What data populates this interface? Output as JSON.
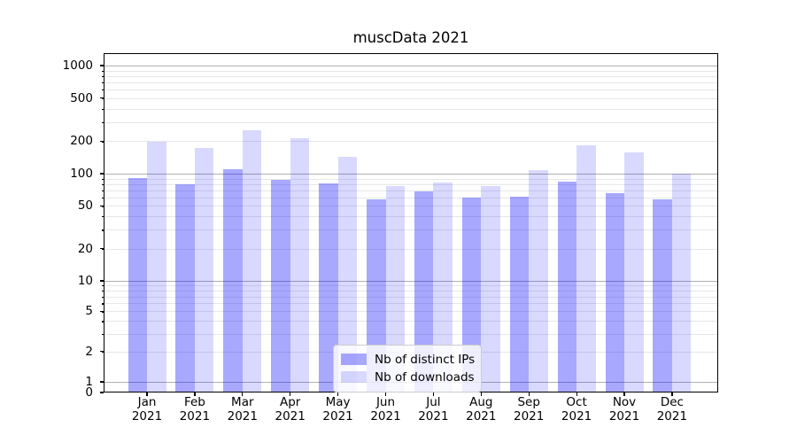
{
  "title": "muscData 2021",
  "colors": {
    "bar_ips_fill": "rgba(0,0,255,0.34)",
    "bar_downloads_fill": "rgba(0,0,255,0.15)",
    "bar_ips_hex": "#A8A8F8",
    "bar_downloads_hex": "#D8D8FA",
    "grid_major": "#b0b0b0",
    "grid_minor": "#e7e7e7",
    "axis": "#000000",
    "background": "#ffffff"
  },
  "legend": {
    "items": [
      {
        "label": "Nb of distinct IPs",
        "swatch": "ips"
      },
      {
        "label": "Nb of downloads",
        "swatch": "downloads"
      }
    ]
  },
  "chart_data": {
    "type": "bar",
    "title": "muscData 2021",
    "categories": [
      "Jan 2021",
      "Feb 2021",
      "Mar 2021",
      "Apr 2021",
      "May 2021",
      "Jun 2021",
      "Jul 2021",
      "Aug 2021",
      "Sep 2021",
      "Oct 2021",
      "Nov 2021",
      "Dec 2021"
    ],
    "series": [
      {
        "name": "Nb of distinct IPs",
        "values": [
          91,
          80,
          110,
          88,
          81,
          58,
          68,
          60,
          61,
          85,
          66,
          58
        ]
      },
      {
        "name": "Nb of downloads",
        "values": [
          196,
          173,
          252,
          212,
          143,
          76,
          83,
          77,
          108,
          184,
          158,
          100
        ]
      }
    ],
    "xlabel": "",
    "ylabel": "",
    "yscale": "symlog",
    "ylim": [
      0,
      1300
    ],
    "yticks": [
      0,
      1,
      2,
      5,
      10,
      20,
      50,
      100,
      200,
      500,
      1000
    ],
    "grid": "on",
    "legend_position": "lower center"
  }
}
